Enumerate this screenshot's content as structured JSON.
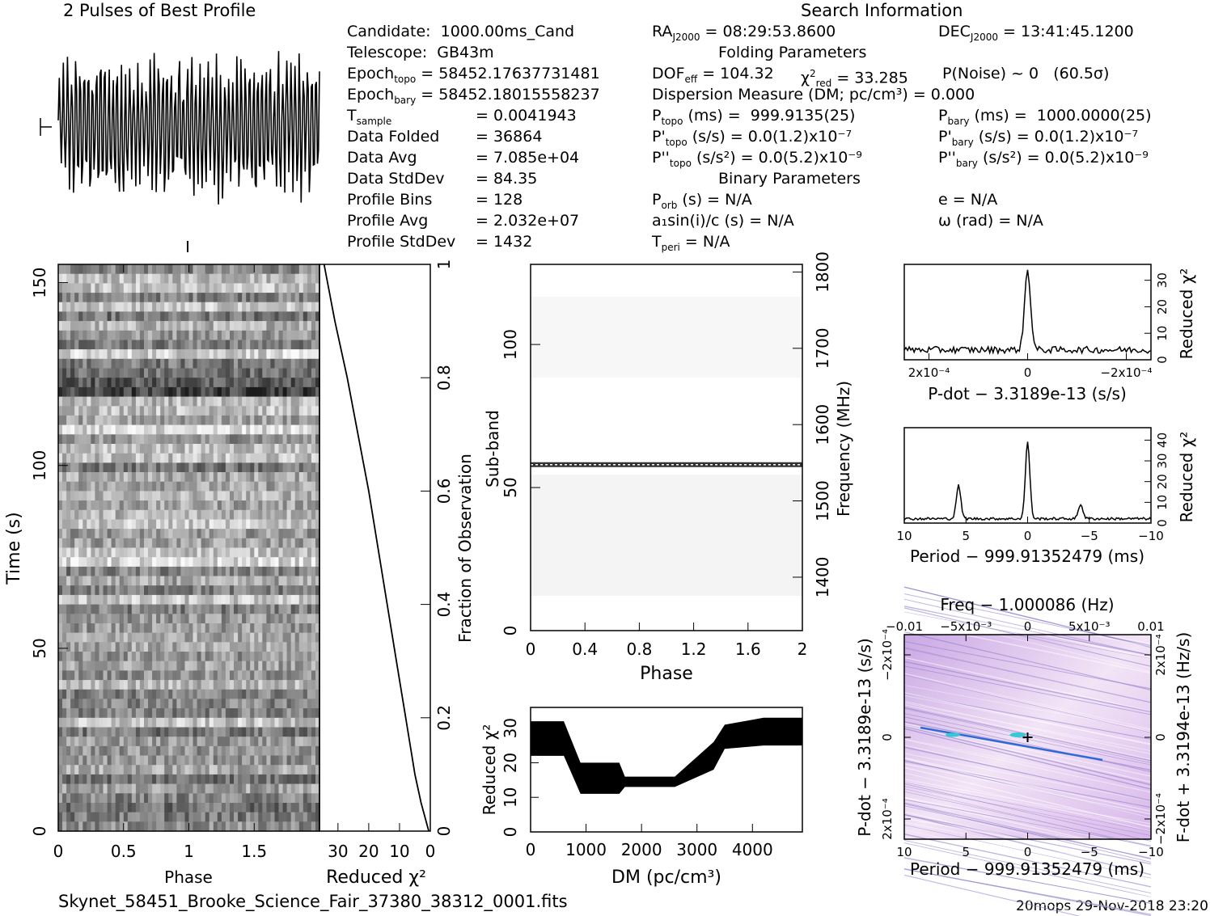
{
  "header": {
    "left_title": "2 Pulses of Best Profile",
    "search_title": "Search Information",
    "folding_title": "Folding Parameters",
    "binary_title": "Binary Parameters"
  },
  "info": {
    "candidate": "Candidate:  1000.00ms_Cand",
    "telescope": "Telescope:  GB43m",
    "epoch_topo": " = 58452.17637731481",
    "epoch_bary": " = 58452.18015558237",
    "t_sample": "= 0.0041943",
    "data_folded_label": "Data Folded",
    "data_folded": "= 36864",
    "data_avg_label": "Data Avg",
    "data_avg": "= 7.085e+04",
    "data_stddev_label": "Data StdDev",
    "data_stddev": "= 84.35",
    "profile_bins_label": "Profile Bins",
    "profile_bins": "= 128",
    "profile_avg_label": "Profile Avg",
    "profile_avg": "= 2.032e+07",
    "profile_stddev_label": "Profile StdDev",
    "profile_stddev": "= 1432",
    "ra": " = 08:29:53.8600",
    "dec": " = 13:41:45.1200",
    "dof": " = 104.32",
    "chi2": " = 33.285",
    "pnoise": "P(Noise) ~ 0   (60.5σ)",
    "dm": "Dispersion Measure (DM; pc/cm³) = 0.000",
    "p_topo": " (ms) =  999.9135(25)",
    "p_bary": " (ms) =  1000.0000(25)",
    "pd_topo": " (s/s) = 0.0(1.2)x10⁻⁷",
    "pd_bary": " (s/s) = 0.0(1.2)x10⁻⁷",
    "pdd_topo": " (s/s²) = 0.0(5.2)x10⁻⁹",
    "pdd_bary": " (s/s²) = 0.0(5.2)x10⁻⁹",
    "porb": " (s) = N/A",
    "e": "e = N/A",
    "a1": "a₁sin(i)/c (s) = N/A",
    "omega": "ω (rad) = N/A",
    "tperi": " = N/A"
  },
  "footer": {
    "filename": "Skynet_58451_Brooke_Science_Fair_37380_38312_0001.fits",
    "stamp": "20mops 29-Nov-2018 23:20"
  },
  "chart_data": [
    {
      "type": "line",
      "name": "pulse-profile",
      "title": "2 Pulses of Best Profile",
      "pulses": 2,
      "bins_per_pulse": 128
    },
    {
      "type": "heatmap",
      "name": "time-phase",
      "xlabel": "Phase",
      "ylabel": "Time (s)",
      "x_ticks": [
        "0",
        "0.5",
        "1",
        "1.5"
      ],
      "y_ticks": [
        "0",
        "50",
        "100",
        "150"
      ],
      "xlim": [
        0,
        2
      ],
      "ylim": [
        0,
        155
      ]
    },
    {
      "type": "line",
      "name": "chi2-vs-fraction",
      "xlabel": "Reduced χ²",
      "ylabel": "Fraction of Observation",
      "x_ticks": [
        "30",
        "20",
        "10",
        "0"
      ],
      "y_ticks": [
        "0",
        "0.2",
        "0.4",
        "0.6",
        "0.8",
        "1"
      ],
      "xlim": [
        36,
        0
      ],
      "ylim": [
        0,
        1
      ],
      "fraction": [
        0,
        0.02,
        0.05,
        0.1,
        0.2,
        0.3,
        0.4,
        0.5,
        0.6,
        0.7,
        0.8,
        0.9,
        1.0
      ],
      "chi2": [
        0.5,
        1.5,
        3,
        5,
        8,
        11,
        14,
        17,
        20,
        23.5,
        27,
        31,
        34.5
      ]
    },
    {
      "type": "heatmap",
      "name": "subband-phase",
      "xlabel": "Phase",
      "ylabel": "Sub-band",
      "y2label": "Frequency (MHz)",
      "x_ticks": [
        "0",
        "0.4",
        "0.8",
        "1.2",
        "1.6",
        "2"
      ],
      "y_ticks": [
        "0",
        "50",
        "100"
      ],
      "y2_ticks": [
        "1400",
        "1500",
        "1600",
        "1700",
        "1800"
      ],
      "xlim": [
        0,
        2
      ],
      "ylim": [
        0,
        128
      ],
      "bright_subband": 58
    },
    {
      "type": "line",
      "name": "chi2-vs-dm",
      "xlabel": "DM (pc/cm³)",
      "ylabel": "Reduced χ²",
      "x_ticks": [
        "0",
        "1000",
        "2000",
        "3000",
        "4000"
      ],
      "y_ticks": [
        "0",
        "10",
        "20",
        "30"
      ],
      "xlim": [
        0,
        4900
      ],
      "ylim": [
        0,
        36
      ],
      "dm": [
        0,
        600,
        900,
        1600,
        1700,
        2600,
        3300,
        3500,
        4200,
        4900
      ],
      "chi2_low": [
        22,
        22,
        11,
        11,
        13,
        13,
        18,
        24,
        25,
        25
      ],
      "chi2_high": [
        32,
        32,
        20,
        20,
        16,
        16,
        26,
        31,
        33,
        33
      ]
    },
    {
      "type": "line",
      "name": "chi2-vs-pdot",
      "xlabel": "P-dot − 3.3189e-13 (s/s)",
      "ylabel": "Reduced χ²",
      "x_ticks": [
        "2x10⁻⁴",
        "0",
        "−2x10⁻⁴"
      ],
      "y_ticks": [
        "0",
        "10",
        "20",
        "30"
      ],
      "xlim": [
        0.00025,
        -0.00025
      ],
      "ylim": [
        0,
        36
      ],
      "peak_x": 0,
      "peak_y": 33.3
    },
    {
      "type": "line",
      "name": "chi2-vs-period",
      "xlabel": "Period − 999.91352479 (ms)",
      "ylabel": "Reduced χ²",
      "x_ticks": [
        "10",
        "5",
        "0",
        "−5",
        "−10"
      ],
      "y_ticks": [
        "0",
        "10",
        "20",
        "30",
        "40"
      ],
      "xlim": [
        10,
        -10
      ],
      "ylim": [
        0,
        46
      ],
      "peaks_x": [
        5.6,
        0,
        -4.3
      ],
      "peaks_y": [
        18,
        39,
        9
      ]
    },
    {
      "type": "heatmap",
      "name": "period-pdot",
      "xlabel": "Period − 999.91352479 (ms)",
      "ylabel": "P-dot − 3.3189e-13 (s/s)",
      "x2label": "Freq − 1.000086 (Hz)",
      "y2label": "F-dot + 3.3194e-13 (Hz/s)",
      "x_ticks": [
        "10",
        "5",
        "0",
        "−5",
        "−10"
      ],
      "x2_ticks": [
        "−0.01",
        "−5x10⁻³",
        "0",
        "5x10⁻³",
        "0.01"
      ],
      "y_ticks": [
        "−2x10⁻⁴",
        "0",
        "2x10⁻⁴"
      ],
      "y2_ticks": [
        "2x10⁻⁴",
        "0",
        "−2x10⁻⁴"
      ],
      "xlim": [
        10,
        -10
      ],
      "ylim": [
        -0.00025,
        0.00025
      ]
    }
  ]
}
